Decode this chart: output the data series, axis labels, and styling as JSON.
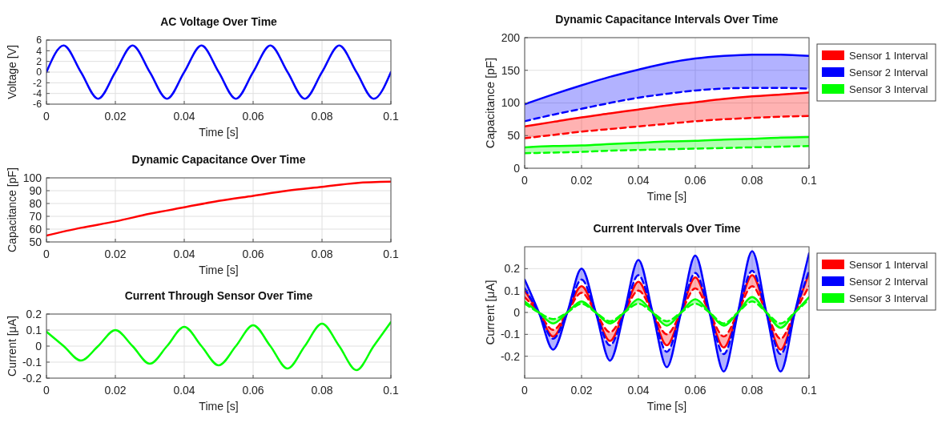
{
  "chart_data": [
    {
      "type": "line",
      "title": "AC Voltage Over Time",
      "xlabel": "Time [s]",
      "ylabel": "Voltage [V]",
      "xlim": [
        0,
        0.1
      ],
      "xticks": [
        0,
        0.02,
        0.04,
        0.06,
        0.08,
        0.1
      ],
      "ylim": [
        -6,
        6
      ],
      "yticks": [
        -6,
        -4,
        -2,
        0,
        2,
        4,
        6
      ],
      "grid": true,
      "x": [
        0,
        0.005,
        0.01,
        0.015,
        0.02,
        0.025,
        0.03,
        0.035,
        0.04,
        0.045,
        0.05,
        0.055,
        0.06,
        0.065,
        0.07,
        0.075,
        0.08,
        0.085,
        0.09,
        0.095,
        0.1
      ],
      "series": [
        {
          "color": "#0000ff",
          "values": [
            0,
            5,
            0,
            -5,
            0,
            5,
            0,
            -5,
            0,
            5,
            0,
            -5,
            0,
            5,
            0,
            -5,
            0,
            5,
            0,
            -5,
            0
          ]
        }
      ]
    },
    {
      "type": "line",
      "title": "Dynamic Capacitance Over Time",
      "xlabel": "Time [s]",
      "ylabel": "Capacitance [pF]",
      "xlim": [
        0,
        0.1
      ],
      "xticks": [
        0,
        0.02,
        0.04,
        0.06,
        0.08,
        0.1
      ],
      "ylim": [
        50,
        100
      ],
      "yticks": [
        50,
        60,
        70,
        80,
        90,
        100
      ],
      "grid": true,
      "x": [
        0,
        0.01,
        0.02,
        0.03,
        0.04,
        0.05,
        0.06,
        0.07,
        0.08,
        0.09,
        0.1
      ],
      "series": [
        {
          "color": "#ff0000",
          "values": [
            55,
            61,
            66,
            72,
            77,
            82,
            86,
            90,
            93,
            96,
            97
          ]
        }
      ]
    },
    {
      "type": "line",
      "title": "Current Through Sensor Over Time",
      "xlabel": "Time [s]",
      "ylabel": "Current [μA]",
      "xlim": [
        0,
        0.1
      ],
      "xticks": [
        0,
        0.02,
        0.04,
        0.06,
        0.08,
        0.1
      ],
      "ylim": [
        -0.2,
        0.2
      ],
      "yticks": [
        -0.2,
        -0.1,
        0,
        0.1,
        0.2
      ],
      "grid": true,
      "x": [
        0,
        0.005,
        0.01,
        0.015,
        0.02,
        0.025,
        0.03,
        0.035,
        0.04,
        0.045,
        0.05,
        0.055,
        0.06,
        0.065,
        0.07,
        0.075,
        0.08,
        0.085,
        0.09,
        0.095,
        0.1
      ],
      "series": [
        {
          "color": "#00ff00",
          "values": [
            0.09,
            0,
            -0.09,
            0,
            0.1,
            0,
            -0.11,
            0,
            0.12,
            0,
            -0.12,
            0,
            0.13,
            0,
            -0.14,
            0,
            0.14,
            0,
            -0.15,
            0,
            0.15
          ]
        }
      ]
    },
    {
      "type": "line",
      "title": "Dynamic Capacitance Intervals Over Time",
      "xlabel": "Time [s]",
      "ylabel": "Capacitance [pF]",
      "xlim": [
        0,
        0.1
      ],
      "xticks": [
        0,
        0.02,
        0.04,
        0.06,
        0.08,
        0.1
      ],
      "ylim": [
        0,
        200
      ],
      "yticks": [
        0,
        50,
        100,
        150,
        200
      ],
      "grid": true,
      "legend": "right",
      "x": [
        0,
        0.01,
        0.02,
        0.03,
        0.04,
        0.05,
        0.06,
        0.07,
        0.08,
        0.09,
        0.1
      ],
      "series": [
        {
          "name": "Sensor 1 Interval",
          "color": "#ff0000",
          "line_style": "solid",
          "values": [
            64,
            71,
            78,
            84,
            90,
            96,
            101,
            106,
            110,
            113,
            116
          ],
          "lower": [
            46,
            51,
            56,
            60,
            64,
            68,
            72,
            75,
            77,
            79,
            80
          ],
          "upper": [
            64,
            71,
            78,
            84,
            90,
            96,
            101,
            106,
            110,
            113,
            116
          ]
        },
        {
          "color": "#ff0000",
          "line_style": "dashed",
          "values": [
            46,
            51,
            56,
            60,
            64,
            68,
            72,
            75,
            77,
            79,
            80
          ]
        },
        {
          "name": "Sensor 2 Interval",
          "color": "#0000ff",
          "line_style": "solid",
          "values": [
            98,
            113,
            127,
            140,
            151,
            161,
            168,
            172,
            174,
            174,
            172
          ],
          "lower": [
            72,
            82,
            91,
            100,
            108,
            114,
            119,
            122,
            123,
            123,
            122
          ],
          "upper": [
            98,
            113,
            127,
            140,
            151,
            161,
            168,
            172,
            174,
            174,
            172
          ]
        },
        {
          "color": "#0000ff",
          "line_style": "dashed",
          "values": [
            72,
            82,
            91,
            100,
            108,
            114,
            119,
            122,
            123,
            123,
            122
          ]
        },
        {
          "name": "Sensor 3 Interval",
          "color": "#00ff00",
          "line_style": "solid",
          "values": [
            32,
            34,
            35,
            37,
            39,
            41,
            42,
            44,
            45,
            47,
            48
          ],
          "lower": [
            23,
            24,
            25,
            27,
            28,
            29,
            30,
            31,
            32,
            33,
            34
          ],
          "upper": [
            32,
            34,
            35,
            37,
            39,
            41,
            42,
            44,
            45,
            47,
            48
          ]
        },
        {
          "color": "#00ff00",
          "line_style": "dashed",
          "values": [
            23,
            24,
            25,
            27,
            28,
            29,
            30,
            31,
            32,
            33,
            34
          ]
        }
      ]
    },
    {
      "type": "line",
      "title": "Current Intervals Over Time",
      "xlabel": "Time [s]",
      "ylabel": "Current [μA]",
      "xlim": [
        0,
        0.1
      ],
      "xticks": [
        0,
        0.02,
        0.04,
        0.06,
        0.08,
        0.1
      ],
      "ylim": [
        -0.3,
        0.3
      ],
      "yticks": [
        -0.2,
        -0.1,
        0,
        0.1,
        0.2
      ],
      "grid": true,
      "legend": "right",
      "x": [
        0,
        0.005,
        0.01,
        0.015,
        0.02,
        0.025,
        0.03,
        0.035,
        0.04,
        0.045,
        0.05,
        0.055,
        0.06,
        0.065,
        0.07,
        0.075,
        0.08,
        0.085,
        0.09,
        0.095,
        0.1
      ],
      "series": [
        {
          "name": "Sensor 1 Interval",
          "color": "#ff0000",
          "line_style": "solid",
          "values": [
            0.1,
            0,
            -0.11,
            0,
            0.12,
            0,
            -0.13,
            0,
            0.14,
            0,
            -0.15,
            0,
            0.16,
            0,
            -0.16,
            0,
            0.17,
            0,
            -0.17,
            0,
            0.18
          ],
          "lower": [
            0.07,
            0,
            -0.08,
            0,
            0.09,
            0,
            -0.09,
            0,
            0.1,
            0,
            -0.1,
            0,
            0.11,
            0,
            -0.11,
            0,
            0.12,
            0,
            -0.12,
            0,
            0.12
          ],
          "upper": [
            0.1,
            0,
            -0.11,
            0,
            0.12,
            0,
            -0.13,
            0,
            0.14,
            0,
            -0.15,
            0,
            0.16,
            0,
            -0.16,
            0,
            0.17,
            0,
            -0.17,
            0,
            0.18
          ]
        },
        {
          "color": "#ff0000",
          "line_style": "dashed",
          "values": [
            0.07,
            0,
            -0.08,
            0,
            0.09,
            0,
            -0.09,
            0,
            0.1,
            0,
            -0.1,
            0,
            0.11,
            0,
            -0.11,
            0,
            0.12,
            0,
            -0.12,
            0,
            0.12
          ]
        },
        {
          "name": "Sensor 2 Interval",
          "color": "#0000ff",
          "line_style": "solid",
          "values": [
            0.15,
            0,
            -0.17,
            0,
            0.2,
            0,
            -0.22,
            0,
            0.24,
            0,
            -0.25,
            0,
            0.26,
            0,
            -0.27,
            0,
            0.28,
            0,
            -0.27,
            0,
            0.27
          ],
          "lower": [
            0.11,
            0,
            -0.12,
            0,
            0.15,
            0,
            -0.15,
            0,
            0.17,
            0,
            -0.18,
            0,
            0.18,
            0,
            -0.19,
            0,
            0.19,
            0,
            -0.19,
            0,
            0.19
          ],
          "upper": [
            0.15,
            0,
            -0.17,
            0,
            0.2,
            0,
            -0.22,
            0,
            0.24,
            0,
            -0.25,
            0,
            0.26,
            0,
            -0.27,
            0,
            0.28,
            0,
            -0.27,
            0,
            0.27
          ]
        },
        {
          "color": "#0000ff",
          "line_style": "dashed",
          "values": [
            0.11,
            0,
            -0.12,
            0,
            0.15,
            0,
            -0.15,
            0,
            0.17,
            0,
            -0.18,
            0,
            0.18,
            0,
            -0.19,
            0,
            0.19,
            0,
            -0.19,
            0,
            0.19
          ]
        },
        {
          "name": "Sensor 3 Interval",
          "color": "#00ff00",
          "line_style": "solid",
          "values": [
            0.05,
            0,
            -0.05,
            0,
            0.05,
            0,
            -0.05,
            0,
            0.06,
            0,
            -0.06,
            0,
            0.06,
            0,
            -0.06,
            0,
            0.07,
            0,
            -0.07,
            0,
            0.07
          ],
          "lower": [
            0.04,
            0,
            -0.03,
            0,
            0.04,
            0,
            -0.04,
            0,
            0.04,
            0,
            -0.04,
            0,
            0.04,
            0,
            -0.05,
            0,
            0.05,
            0,
            -0.05,
            0,
            0.06
          ],
          "upper": [
            0.05,
            0,
            -0.05,
            0,
            0.05,
            0,
            -0.05,
            0,
            0.06,
            0,
            -0.06,
            0,
            0.06,
            0,
            -0.06,
            0,
            0.07,
            0,
            -0.07,
            0,
            0.07
          ]
        },
        {
          "color": "#00ff00",
          "line_style": "dashed",
          "values": [
            0.04,
            0,
            -0.03,
            0,
            0.04,
            0,
            -0.04,
            0,
            0.04,
            0,
            -0.04,
            0,
            0.04,
            0,
            -0.05,
            0,
            0.05,
            0,
            -0.05,
            0,
            0.06
          ]
        }
      ]
    }
  ]
}
